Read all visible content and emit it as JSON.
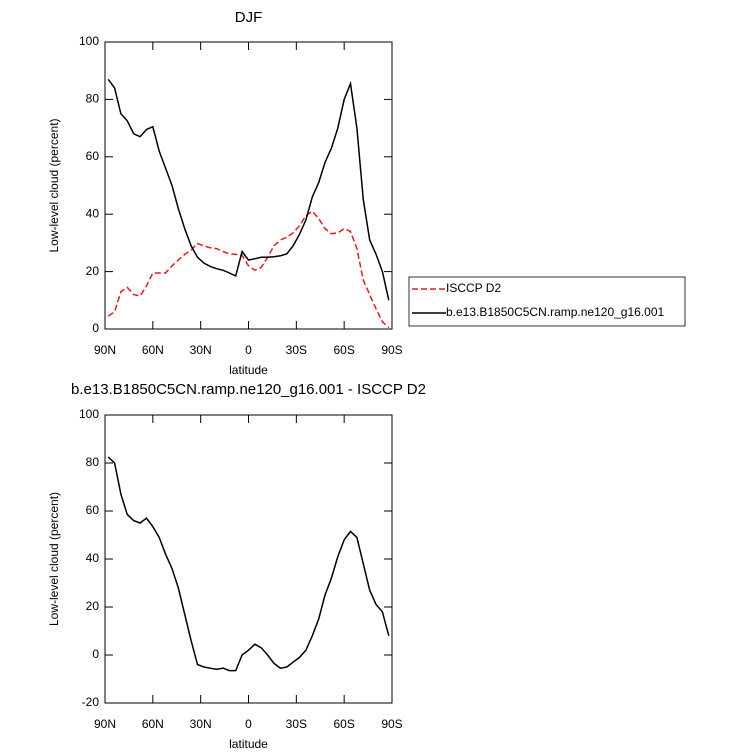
{
  "chart_data": [
    {
      "type": "line",
      "title": "DJF",
      "xlabel": "latitude",
      "ylabel": "Low-level cloud (percent)",
      "x": [
        88,
        84,
        80,
        76,
        72,
        68,
        64,
        60,
        56,
        52,
        48,
        44,
        40,
        36,
        32,
        28,
        24,
        20,
        16,
        12,
        8,
        4,
        0,
        -4,
        -8,
        -12,
        -16,
        -20,
        -24,
        -28,
        -32,
        -36,
        -40,
        -44,
        -48,
        -52,
        -56,
        -60,
        -64,
        -68,
        -72,
        -76,
        -80,
        -84,
        -88
      ],
      "series": [
        {
          "name": "ISCCP D2",
          "color": "#e8191c",
          "line_style": "dashed",
          "values": [
            4.5,
            6,
            13,
            14.5,
            12,
            11.5,
            15,
            19.5,
            19.5,
            19.5,
            22,
            24,
            26,
            27.5,
            29.8,
            29,
            28.3,
            28,
            27,
            26.2,
            26,
            25.7,
            22,
            20.5,
            21.5,
            25,
            29,
            31,
            32,
            33.5,
            36,
            39.5,
            41,
            38.5,
            35,
            33.2,
            33.5,
            35,
            34,
            28,
            17,
            12,
            7,
            2.5,
            0.5
          ]
        },
        {
          "name": "b.e13.B1850C5CN.ramp.ne120_g16.001",
          "color": "#000000",
          "line_style": "solid",
          "values": [
            87,
            84,
            75,
            72.5,
            68,
            67,
            69.5,
            70.5,
            62,
            56,
            50,
            42,
            35,
            29,
            25,
            23,
            21.8,
            21,
            20.5,
            19.5,
            18.5,
            27,
            24,
            24.5,
            25,
            25,
            25.2,
            25.5,
            26.2,
            29,
            33,
            38,
            46,
            51,
            58,
            63,
            70,
            80,
            85.5,
            70,
            45,
            31,
            26,
            20,
            10
          ]
        }
      ],
      "xlim": [
        90,
        -90
      ],
      "xticks": [
        {
          "value": 90,
          "label": "90N"
        },
        {
          "value": 60,
          "label": "60N"
        },
        {
          "value": 30,
          "label": "30N"
        },
        0,
        {
          "value": -30,
          "label": "30S"
        },
        {
          "value": -60,
          "label": "60S"
        },
        {
          "value": -90,
          "label": "90S"
        }
      ],
      "ylim": [
        0,
        100
      ],
      "yticks": [
        0,
        20,
        40,
        60,
        80,
        100
      ],
      "legend": "right"
    },
    {
      "type": "line",
      "title": "b.e13.B1850C5CN.ramp.ne120_g16.001 - ISCCP D2",
      "xlabel": "latitude",
      "ylabel": "Low-level cloud (percent)",
      "x": [
        88,
        84,
        80,
        76,
        72,
        68,
        64,
        60,
        56,
        52,
        48,
        44,
        40,
        36,
        32,
        28,
        24,
        20,
        16,
        12,
        8,
        4,
        0,
        -4,
        -8,
        -12,
        -16,
        -20,
        -24,
        -28,
        -32,
        -36,
        -40,
        -44,
        -48,
        -52,
        -56,
        -60,
        -64,
        -68,
        -72,
        -76,
        -80,
        -84,
        -88
      ],
      "values": [
        82.5,
        80,
        67,
        58.5,
        56,
        55,
        57,
        53.5,
        49,
        42,
        36,
        28,
        17,
        6,
        -4,
        -5,
        -5.5,
        -6,
        -5.5,
        -6.5,
        -6.5,
        0,
        2,
        4.5,
        3,
        0,
        -3.5,
        -5.5,
        -5,
        -3,
        -1,
        2,
        8,
        15,
        25,
        32,
        41,
        48,
        51.5,
        49,
        38,
        27,
        21,
        18,
        8
      ],
      "color": "#000000",
      "xlim": [
        90,
        -90
      ],
      "xticks": [
        {
          "value": 90,
          "label": "90N"
        },
        {
          "value": 60,
          "label": "60N"
        },
        {
          "value": 30,
          "label": "30N"
        },
        0,
        {
          "value": -30,
          "label": "30S"
        },
        {
          "value": -60,
          "label": "60S"
        },
        {
          "value": -90,
          "label": "90S"
        }
      ],
      "ylim": [
        -20,
        100
      ],
      "yticks": [
        -20,
        0,
        20,
        40,
        60,
        80,
        100
      ]
    }
  ]
}
